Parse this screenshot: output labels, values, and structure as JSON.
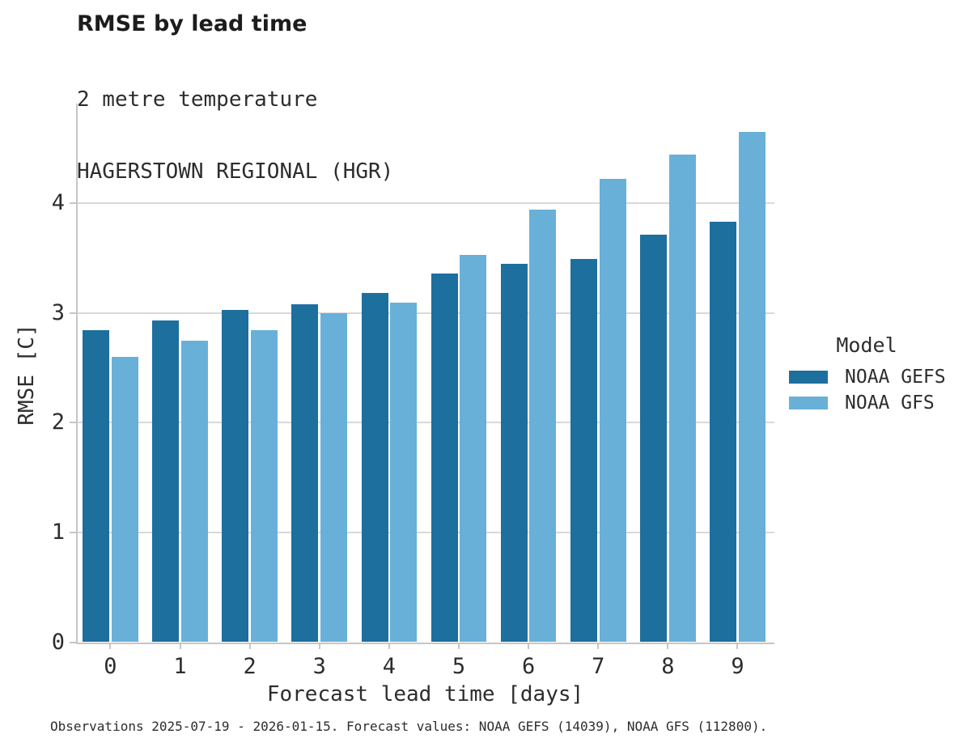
{
  "header": {
    "title": "RMSE by lead time",
    "subtitle_line1": "2 metre temperature",
    "subtitle_line2": "HAGERSTOWN REGIONAL (HGR)"
  },
  "legend": {
    "title": "Model",
    "items": [
      {
        "label": "NOAA GEFS",
        "color": "#1d6f9e"
      },
      {
        "label": "NOAA GFS",
        "color": "#68b0d8"
      }
    ]
  },
  "footer": {
    "caption": "Observations 2025-07-19 - 2026-01-15. Forecast values: NOAA GEFS (14039), NOAA GFS (112800)."
  },
  "chart_data": {
    "type": "bar",
    "title": "RMSE by lead time",
    "subtitle": [
      "2 metre temperature",
      "HAGERSTOWN REGIONAL (HGR)"
    ],
    "xlabel": "Forecast lead time [days]",
    "ylabel": "RMSE [C]",
    "categories": [
      "0",
      "1",
      "2",
      "3",
      "4",
      "5",
      "6",
      "7",
      "8",
      "9"
    ],
    "series": [
      {
        "name": "NOAA GEFS",
        "color": "#1d6f9e",
        "values": [
          2.84,
          2.93,
          3.03,
          3.08,
          3.18,
          3.36,
          3.45,
          3.49,
          3.71,
          3.83
        ]
      },
      {
        "name": "NOAA GFS",
        "color": "#68b0d8",
        "values": [
          2.6,
          2.75,
          2.84,
          3.0,
          3.09,
          3.53,
          3.94,
          4.22,
          4.44,
          4.65
        ]
      }
    ],
    "ylim": [
      0,
      4.9
    ],
    "yticks": [
      0,
      1,
      2,
      3,
      4
    ],
    "grid": "horizontal",
    "legend_position": "right-middle",
    "colors": {
      "grid": "#d9d9d9",
      "spine": "#c6c6c6",
      "tick": "#c6c6c6",
      "text": "#2d2d2d",
      "background": "#ffffff"
    }
  }
}
